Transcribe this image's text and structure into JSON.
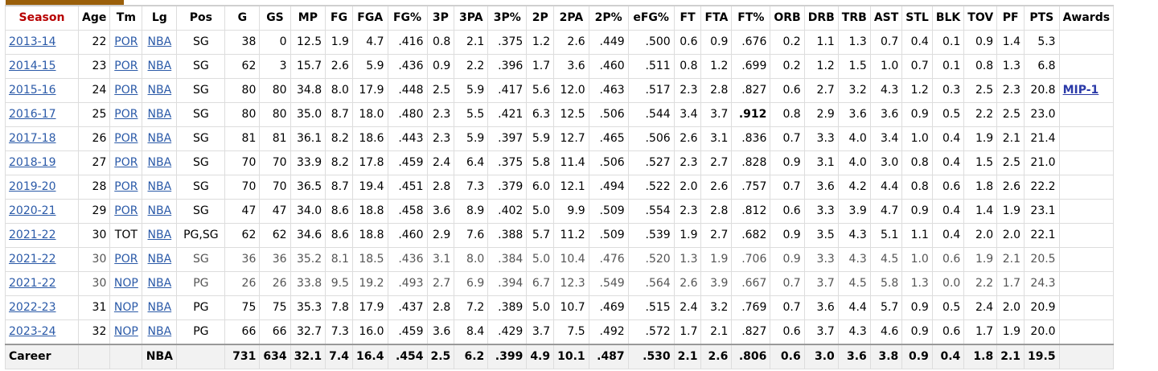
{
  "columns": [
    "Season",
    "Age",
    "Tm",
    "Lg",
    "Pos",
    "G",
    "GS",
    "MP",
    "FG",
    "FGA",
    "FG%",
    "3P",
    "3PA",
    "3P%",
    "2P",
    "2PA",
    "2P%",
    "eFG%",
    "FT",
    "FTA",
    "FT%",
    "ORB",
    "DRB",
    "TRB",
    "AST",
    "STL",
    "BLK",
    "TOV",
    "PF",
    "PTS",
    "Awards"
  ],
  "rows": [
    [
      "2013-14",
      "22",
      "POR",
      "NBA",
      "SG",
      "38",
      "0",
      "12.5",
      "1.9",
      "4.7",
      ".416",
      "0.8",
      "2.1",
      ".375",
      "1.2",
      "2.6",
      ".449",
      ".500",
      "0.6",
      "0.9",
      ".676",
      "0.2",
      "1.1",
      "1.3",
      "0.7",
      "0.4",
      "0.1",
      "0.9",
      "1.4",
      "5.3",
      ""
    ],
    [
      "2014-15",
      "23",
      "POR",
      "NBA",
      "SG",
      "62",
      "3",
      "15.7",
      "2.6",
      "5.9",
      ".436",
      "0.9",
      "2.2",
      ".396",
      "1.7",
      "3.6",
      ".460",
      ".511",
      "0.8",
      "1.2",
      ".699",
      "0.2",
      "1.2",
      "1.5",
      "1.0",
      "0.7",
      "0.1",
      "0.8",
      "1.3",
      "6.8",
      ""
    ],
    [
      "2015-16",
      "24",
      "POR",
      "NBA",
      "SG",
      "80",
      "80",
      "34.8",
      "8.0",
      "17.9",
      ".448",
      "2.5",
      "5.9",
      ".417",
      "5.6",
      "12.0",
      ".463",
      ".517",
      "2.3",
      "2.8",
      ".827",
      "0.6",
      "2.7",
      "3.2",
      "4.3",
      "1.2",
      "0.3",
      "2.5",
      "2.3",
      "20.8",
      "MIP-1"
    ],
    [
      "2016-17",
      "25",
      "POR",
      "NBA",
      "SG",
      "80",
      "80",
      "35.0",
      "8.7",
      "18.0",
      ".480",
      "2.3",
      "5.5",
      ".421",
      "6.3",
      "12.5",
      ".506",
      ".544",
      "3.4",
      "3.7",
      ".912",
      "0.8",
      "2.9",
      "3.6",
      "3.6",
      "0.9",
      "0.5",
      "2.2",
      "2.5",
      "23.0",
      ""
    ],
    [
      "2017-18",
      "26",
      "POR",
      "NBA",
      "SG",
      "81",
      "81",
      "36.1",
      "8.2",
      "18.6",
      ".443",
      "2.3",
      "5.9",
      ".397",
      "5.9",
      "12.7",
      ".465",
      ".506",
      "2.6",
      "3.1",
      ".836",
      "0.7",
      "3.3",
      "4.0",
      "3.4",
      "1.0",
      "0.4",
      "1.9",
      "2.1",
      "21.4",
      ""
    ],
    [
      "2018-19",
      "27",
      "POR",
      "NBA",
      "SG",
      "70",
      "70",
      "33.9",
      "8.2",
      "17.8",
      ".459",
      "2.4",
      "6.4",
      ".375",
      "5.8",
      "11.4",
      ".506",
      ".527",
      "2.3",
      "2.7",
      ".828",
      "0.9",
      "3.1",
      "4.0",
      "3.0",
      "0.8",
      "0.4",
      "1.5",
      "2.5",
      "21.0",
      ""
    ],
    [
      "2019-20",
      "28",
      "POR",
      "NBA",
      "SG",
      "70",
      "70",
      "36.5",
      "8.7",
      "19.4",
      ".451",
      "2.8",
      "7.3",
      ".379",
      "6.0",
      "12.1",
      ".494",
      ".522",
      "2.0",
      "2.6",
      ".757",
      "0.7",
      "3.6",
      "4.2",
      "4.4",
      "0.8",
      "0.6",
      "1.8",
      "2.6",
      "22.2",
      ""
    ],
    [
      "2020-21",
      "29",
      "POR",
      "NBA",
      "SG",
      "47",
      "47",
      "34.0",
      "8.6",
      "18.8",
      ".458",
      "3.6",
      "8.9",
      ".402",
      "5.0",
      "9.9",
      ".509",
      ".554",
      "2.3",
      "2.8",
      ".812",
      "0.6",
      "3.3",
      "3.9",
      "4.7",
      "0.9",
      "0.4",
      "1.4",
      "1.9",
      "23.1",
      ""
    ],
    [
      "2021-22",
      "30",
      "TOT",
      "NBA",
      "PG,SG",
      "62",
      "62",
      "34.6",
      "8.6",
      "18.8",
      ".460",
      "2.9",
      "7.6",
      ".388",
      "5.7",
      "11.2",
      ".509",
      ".539",
      "1.9",
      "2.7",
      ".682",
      "0.9",
      "3.5",
      "4.3",
      "5.1",
      "1.1",
      "0.4",
      "2.0",
      "2.0",
      "22.1",
      ""
    ],
    [
      "2021-22",
      "30",
      "POR",
      "NBA",
      "SG",
      "36",
      "36",
      "35.2",
      "8.1",
      "18.5",
      ".436",
      "3.1",
      "8.0",
      ".384",
      "5.0",
      "10.4",
      ".476",
      ".520",
      "1.3",
      "1.9",
      ".706",
      "0.9",
      "3.3",
      "4.3",
      "4.5",
      "1.0",
      "0.6",
      "1.9",
      "2.1",
      "20.5",
      ""
    ],
    [
      "2021-22",
      "30",
      "NOP",
      "NBA",
      "PG",
      "26",
      "26",
      "33.8",
      "9.5",
      "19.2",
      ".493",
      "2.7",
      "6.9",
      ".394",
      "6.7",
      "12.3",
      ".549",
      ".564",
      "2.6",
      "3.9",
      ".667",
      "0.7",
      "3.7",
      "4.5",
      "5.8",
      "1.3",
      "0.0",
      "2.2",
      "1.7",
      "24.3",
      ""
    ],
    [
      "2022-23",
      "31",
      "NOP",
      "NBA",
      "PG",
      "75",
      "75",
      "35.3",
      "7.8",
      "17.9",
      ".437",
      "2.8",
      "7.2",
      ".389",
      "5.0",
      "10.7",
      ".469",
      ".515",
      "2.4",
      "3.2",
      ".769",
      "0.7",
      "3.6",
      "4.4",
      "5.7",
      "0.9",
      "0.5",
      "2.4",
      "2.0",
      "20.9",
      ""
    ],
    [
      "2023-24",
      "32",
      "NOP",
      "NBA",
      "PG",
      "66",
      "66",
      "32.7",
      "7.3",
      "16.0",
      ".459",
      "3.6",
      "8.4",
      ".429",
      "3.7",
      "7.5",
      ".492",
      ".572",
      "1.7",
      "2.1",
      ".827",
      "0.6",
      "3.7",
      "4.3",
      "4.6",
      "0.9",
      "0.6",
      "1.7",
      "1.9",
      "20.0",
      ""
    ]
  ],
  "career": [
    "Career",
    "",
    "",
    "NBA",
    "",
    "731",
    "634",
    "32.1",
    "7.4",
    "16.4",
    ".454",
    "2.5",
    "6.2",
    ".399",
    "4.9",
    "10.1",
    ".487",
    ".530",
    "2.1",
    "2.6",
    ".806",
    "0.6",
    "3.0",
    "3.6",
    "3.8",
    "0.9",
    "0.4",
    "1.8",
    "2.1",
    "19.5",
    ""
  ],
  "colors": {
    "accent_tab": "#9a5f0a",
    "link": "#2b5aa8",
    "sorted_header": "#b70000",
    "career_bg": "#f2f2f2"
  }
}
